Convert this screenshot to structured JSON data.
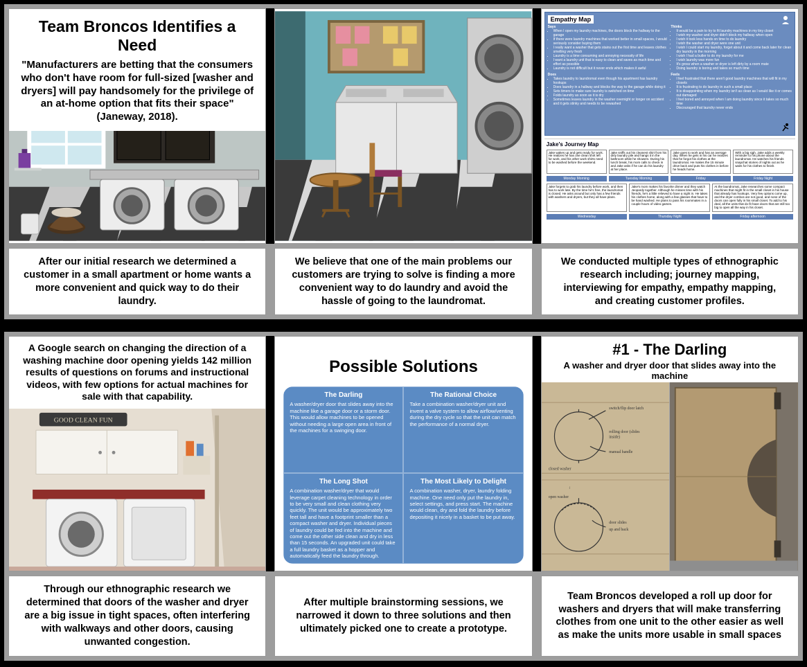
{
  "panel1": {
    "title": "Team Broncos Identifies a Need",
    "quote": "\"Manufacturers are betting that the consumers who don't have room for full-sized [washer and dryers] will pay handsomely for the privilege of an at-home option that fits their space\" (Janeway, 2018).",
    "scene": {
      "wall": "#bdc6c4",
      "floor_light": "#c8c8c8",
      "floor_dark": "#3a3a3a",
      "cabinet": "#2e2a26",
      "counter": "#bfbfbf",
      "machine_body": "#ededed",
      "machine_door": "#9a9a9a",
      "window_frame": "#fff",
      "window_sky": "#cfe8ef",
      "detergent": "#7a3fa0",
      "basket": "#6b4a2a",
      "basket_inner": "#d9cfc0"
    }
  },
  "panel2": {
    "scene": {
      "wall": "#6fb3bd",
      "back_wall_dark": "#3d6b70",
      "floor_light": "#d8d8d8",
      "floor_dark": "#3a3a3a",
      "dryer_stack": "#cfcfcf",
      "dryer_door": "#6e6e6e",
      "washer": "#e8e8e8",
      "chair_wood": "#b07b3a",
      "chair_seat": "#8a2f5f",
      "table": "#b07b3a",
      "board": "#b59a6e",
      "note_pink": "#e68fa0",
      "note_yellow": "#e8c96a"
    }
  },
  "panel3": {
    "empathy_title": "Empathy Map",
    "says_label": "Says",
    "thinks_label": "Thinks",
    "does_label": "Does",
    "feels_label": "Feels",
    "says": [
      "When I open my laundry machines, the doors block the hallway to the garage",
      "If there were laundry machines that worked better in small spaces, I would seriously consider buying them",
      "I really want a washer that gets stains out the first time and leaves clothes smelling very fresh",
      "Laundry is a time consuming and annoying necessity of life",
      "I want a laundry unit that is easy to clean and saves as much time and effort as possible",
      "Laundry is not difficult but it never ends which makes it awful"
    ],
    "thinks": [
      "It would be a pain to try to fit laundry machines in my tiny closet",
      "I wish my washer and dryer didn't block my hallway when open",
      "I wish it took less hands on time to do laundry",
      "I wish the washer and dryer were one unit",
      "I wish I could start my laundry, forget about it and come back later for clean dry laundry in the morning",
      "I wish I had a butler to do my laundry for me",
      "I wish laundry was more fun",
      "It's gross when a washer or dryer is left dirty by a room mate",
      "Doing laundry is boring and takes so much time"
    ],
    "does": [
      "Takes laundry to laundromat even though his apartment has laundry hookups",
      "Does laundry in a hallway and blocks the way to the garage while doing it",
      "Sets timers to make sure laundry is switched on time",
      "Folds laundry as soon as it is dry",
      "Sometimes leaves laundry in the washer overnight or longer on accident and it gets stinky and needs to be rewashed"
    ],
    "feels": [
      "I feel frustrated that there aren't good laundry machines that will fit in my closets",
      "It is frustrating to do laundry in such a small place",
      "It is disappointing when my laundry isn't as clean as I would like it or comes out damaged",
      "I feel bored and annoyed when I am doing laundry since it takes so much time",
      "Discouraged that laundry never ends"
    ],
    "journey_title": "Jake's Journey Map",
    "journey_steps": [
      "Jake wakes up and gets ready for work. He realizes he has one clean shirt left for work, and his other work shirts need to be washed before the weekend.",
      "Jake sniffs out his cleanest shirt from his dirty laundry pile and hangs it in the bathroom while he showers. During his lunch break, his mom calls to check in and Jake asks if he can do his laundry at her place.",
      "Jake goes to work and has an average day. When he gets in his car he realizes that he forgot his clothes at the laundromat. He makes the 15 minute drive back and puts his clothes in before he heads home.",
      "With a big sigh, Jake adds a weekly reminder to his phone about the laundromat. He watches his friends snapchat stories of nights out as he waits for his clothes to finish."
    ],
    "journey_days": [
      "Monday Morning",
      "Tuesday Morning",
      "Friday",
      "Friday Night"
    ],
    "journey_steps2": [
      "Jake forgets to grab his laundry before work, and then has to work late. By the time he's free, the laundromat is closed. He asks around but only has a few friends with washers and dryers, but they all have plans.",
      "Jake's mom makes his favorite dinner and they watch Jeopardy together. Although he misses time with his friends, he's a little relieved to have a night in. He takes his clothes home, along with a few glasses that have to be hand washed. He plans to pass his roommates in a couple hours of video games.",
      "At the laundromat, Jake researches some compact machines that might fit in the small closet in his house that already has hookups. Very few options come up, and the dryer combos are not good, and none of the doors can open fully in his small closet. To add to his deal, all the units that do fit have doors that are still too big to open all the way in his closet."
    ],
    "journey_days2": [
      "Wednesday",
      "Thursday Night",
      "Friday afternoon"
    ]
  },
  "caption1": "After our initial research we determined a customer in a small apartment or home wants a more convenient and quick way to do their laundry.",
  "caption2": "We believe that one of the main problems our customers are trying to solve is finding a more convenient way to do laundry and avoid the hassle of going to the laundromat.",
  "caption3": "We conducted multiple types of ethnographic research including; journey mapping, interviewing for empathy, empathy mapping, and creating customer profiles.",
  "panel4": {
    "text_prefix": "A Google search on changing the direction of a washing machine door opening yields 142 million results of questions on forums and instructional videos, with ",
    "text_bold": "few options for actual machines",
    "text_suffix": " for sale with that capability.",
    "sign": "GOOD CLEAN FUN",
    "photo": {
      "bg": "#e6ded2",
      "cabinet": "#f5f3ee",
      "counter": "#8f2e2a",
      "machine": "#f3f3f3",
      "floor": "#caa"
    }
  },
  "panel5": {
    "title": "Possible Solutions",
    "card_bg": "#5b8bc4",
    "q1_title": "The Darling",
    "q1_body": "A washer/dryer door that slides away into the machine like a garage door or a storm door. This would allow machines to be opened without needing a large open area in front of the machines for a swinging door.",
    "q2_title": "The Rational Choice",
    "q2_body": "Take a combination washer/dryer unit and invent a valve system to allow airflow/venting during the dry cycle so that the unit can match the performance of a normal dryer.",
    "q3_title": "The Long Shot",
    "q3_body": "A combination washer/dryer that would leverage carpet cleaning technology in order to be very small and clean clothing very quickly. The unit would be approximately two feet tall and have a footprint smaller than a compact washer and dryer. Individual pieces of laundry could be fed into the machine and come out the other side clean and dry in less than 15 seconds. An upgraded unit could take a full laundry basket as a hopper and automatically feed the laundry through.",
    "q4_title": "The Most Likely to Delight",
    "q4_body": "A combination washer, dryer, laundry folding machine. One need only put the laundry in, select settings, and press start. The machine would clean, dry and fold the laundry before depositing it nicely in a basket to be put away."
  },
  "panel6": {
    "title": "#1 - The Darling",
    "subtitle": "A washer and dryer door that slides away into the machine",
    "sketch_labels": {
      "a": "switch/flip door latch",
      "b": "rolling door (slides inside)",
      "c": "manual handle",
      "d": "closed washer",
      "e": "open washer",
      "f": "door slides up and back"
    },
    "left_bg": "#c9b896",
    "right_bg": "#8a7a5f",
    "cardboard": "#b39a72"
  },
  "caption4": "Through our ethnographic research we determined that doors of the washer and dryer are a big issue in tight spaces, often interfering with walkways and other doors, causing unwanted congestion.",
  "caption5": "After multiple brainstorming sessions, we narrowed it down to three solutions and then ultimately picked one to create a prototype.",
  "caption6": "Team Broncos developed a roll up door for washers and dryers that will make transferring clothes from one unit to the other easier as well as make the units more usable in small spaces"
}
